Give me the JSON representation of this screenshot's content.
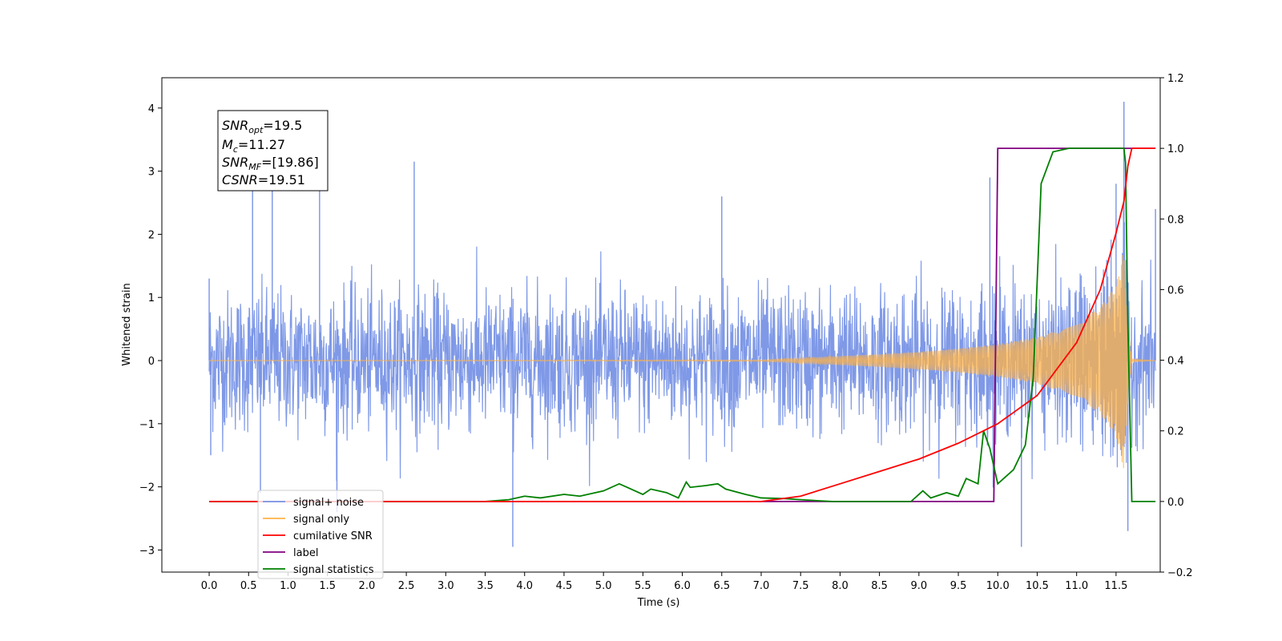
{
  "chart_data": {
    "type": "line",
    "xlabel": "Time (s)",
    "ylabel": "Whitened strain",
    "xlim": [
      -0.6,
      12.06
    ],
    "ylim": [
      -3.35,
      4.48
    ],
    "y2lim": [
      -0.2,
      1.2
    ],
    "grid": false,
    "legend_position": "lower-left",
    "x_ticks": [
      "0.0",
      "0.5",
      "1.0",
      "1.5",
      "2.0",
      "2.5",
      "3.0",
      "3.5",
      "4.0",
      "4.5",
      "5.0",
      "5.5",
      "6.0",
      "6.5",
      "7.0",
      "7.5",
      "8.0",
      "8.5",
      "9.0",
      "9.5",
      "10.0",
      "10.5",
      "11.0",
      "11.5"
    ],
    "y_ticks": [
      "−3",
      "−2",
      "−1",
      "0",
      "1",
      "2",
      "3",
      "4"
    ],
    "y2_ticks": [
      "−0.2",
      "0.0",
      "0.2",
      "0.4",
      "0.6",
      "0.8",
      "1.0",
      "1.2"
    ],
    "annotation": {
      "snr_opt": {
        "base": "SNR",
        "sub": "opt",
        "value": "=19.5"
      },
      "mc": {
        "base": "M",
        "sub": "c",
        "value": "=11.27"
      },
      "snr_mf": {
        "base": "SNR",
        "sub": "MF",
        "value": "=[19.86]"
      },
      "csnr": {
        "base": "CSNR",
        "value": "=19.51"
      }
    },
    "series": [
      {
        "name": "signal+ noise",
        "axis": "left",
        "color": "#7893e6",
        "description_values": "noise band approx ±1.3 with spikes",
        "x": [
          0.0,
          0.02,
          0.55,
          0.65,
          0.8,
          1.4,
          1.62,
          2.6,
          3.85,
          6.5,
          9.9,
          10.3,
          11.5,
          11.6,
          11.65,
          12.0
        ],
        "y": [
          1.3,
          -1.5,
          2.75,
          -2.1,
          2.75,
          2.85,
          -2.4,
          3.15,
          -2.95,
          2.6,
          2.9,
          -2.95,
          2.8,
          4.1,
          -2.7,
          2.4
        ]
      },
      {
        "name": "signal only",
        "axis": "left",
        "color": "#ffb347",
        "envelope": {
          "t": [
            0.0,
            7.0,
            7.5,
            8.0,
            8.5,
            9.0,
            9.5,
            10.0,
            10.5,
            11.0,
            11.3,
            11.5,
            11.6,
            11.65,
            11.7,
            12.0
          ],
          "amp": [
            0.0,
            0.01,
            0.04,
            0.07,
            0.1,
            0.14,
            0.19,
            0.26,
            0.37,
            0.58,
            0.85,
            1.2,
            1.75,
            0.6,
            0.02,
            0.0
          ]
        }
      },
      {
        "name": "cumilative SNR",
        "axis": "right",
        "color": "#ff0000",
        "x": [
          0.0,
          7.0,
          7.5,
          8.0,
          8.5,
          9.0,
          9.5,
          10.0,
          10.5,
          11.0,
          11.3,
          11.5,
          11.6,
          11.65,
          11.7,
          12.0
        ],
        "y": [
          0.0,
          0.0,
          0.015,
          0.05,
          0.085,
          0.12,
          0.165,
          0.22,
          0.3,
          0.45,
          0.6,
          0.76,
          0.85,
          0.95,
          1.0,
          1.0
        ]
      },
      {
        "name": "label",
        "axis": "right",
        "color": "#800080",
        "x": [
          0.0,
          9.95,
          10.0,
          11.65,
          11.7,
          12.0
        ],
        "y": [
          0.0,
          0.0,
          1.0,
          1.0,
          1.0,
          1.0
        ]
      },
      {
        "name": "signal statistics",
        "axis": "right",
        "color": "#008000",
        "x": [
          0.0,
          3.5,
          3.8,
          4.0,
          4.2,
          4.5,
          4.7,
          5.0,
          5.2,
          5.3,
          5.5,
          5.6,
          5.8,
          5.95,
          6.05,
          6.1,
          6.3,
          6.45,
          6.55,
          6.8,
          7.0,
          7.3,
          7.5,
          7.9,
          8.0,
          8.9,
          9.05,
          9.15,
          9.35,
          9.5,
          9.6,
          9.75,
          9.82,
          9.9,
          10.0,
          10.2,
          10.35,
          10.45,
          10.55,
          10.7,
          10.9,
          11.5,
          11.6,
          11.62,
          11.65,
          11.7,
          12.0
        ],
        "y": [
          0.0,
          0.0,
          0.005,
          0.015,
          0.01,
          0.02,
          0.015,
          0.03,
          0.05,
          0.04,
          0.02,
          0.035,
          0.025,
          0.01,
          0.055,
          0.04,
          0.045,
          0.05,
          0.035,
          0.02,
          0.01,
          0.008,
          0.005,
          0.0,
          0.0,
          0.0,
          0.03,
          0.01,
          0.025,
          0.015,
          0.065,
          0.05,
          0.2,
          0.15,
          0.05,
          0.09,
          0.16,
          0.35,
          0.9,
          0.99,
          1.0,
          1.0,
          1.0,
          0.96,
          0.5,
          0.0,
          0.0
        ]
      }
    ]
  }
}
